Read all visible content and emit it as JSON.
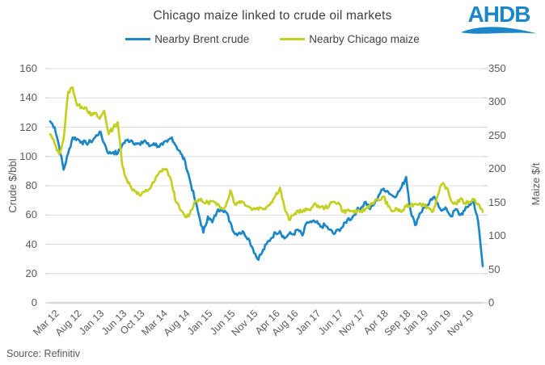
{
  "header": {
    "title": "Chicago maize linked to crude oil markets",
    "logo_text": "AHDB",
    "logo_color": "#1b87c8"
  },
  "legend": {
    "items": [
      {
        "label": "Nearby Brent crude",
        "color": "#1d87c6"
      },
      {
        "label": "Nearby Chicago maize",
        "color": "#c3d022"
      }
    ]
  },
  "source": "Source: Refinitiv",
  "colors": {
    "brent_line": "#1d87c6",
    "maize_line": "#c3d022",
    "gridline": "#dcdcdc",
    "axis_line": "#d9d9d9",
    "tick_text": "#595959",
    "title_text": "#3f3f3f"
  },
  "chart_data": {
    "type": "line",
    "title": "Chicago maize linked to crude oil markets",
    "x_unit": "month",
    "x_start": "Mar 2012",
    "x_end": "Mar 2020",
    "grid": true,
    "legend_position": "top",
    "left_axis": {
      "label": "Crude $/bbl",
      "min": 0,
      "max": 160,
      "ticks": [
        160,
        140,
        120,
        100,
        80,
        60,
        40,
        20,
        0
      ]
    },
    "right_axis": {
      "label": "Maize $/t",
      "min": 0,
      "max": 350,
      "ticks": [
        350,
        300,
        250,
        200,
        150,
        100,
        50,
        0
      ]
    },
    "x_ticks": [
      {
        "label": "Mar 12",
        "m": 0
      },
      {
        "label": "Aug 12",
        "m": 5
      },
      {
        "label": "Jan 13",
        "m": 10
      },
      {
        "label": "Jun 13",
        "m": 15
      },
      {
        "label": "Oct 13",
        "m": 19
      },
      {
        "label": "Mar 14",
        "m": 24
      },
      {
        "label": "Aug 14",
        "m": 29
      },
      {
        "label": "Jan 15",
        "m": 34
      },
      {
        "label": "Jun 15",
        "m": 39
      },
      {
        "label": "Nov 15",
        "m": 44
      },
      {
        "label": "Apr 16",
        "m": 49
      },
      {
        "label": "Aug 16",
        "m": 53
      },
      {
        "label": "Jan 17",
        "m": 58
      },
      {
        "label": "Jun 17",
        "m": 63
      },
      {
        "label": "Nov 17",
        "m": 68
      },
      {
        "label": "Apr 18",
        "m": 73
      },
      {
        "label": "Sep 18",
        "m": 78
      },
      {
        "label": "Jan 19",
        "m": 82
      },
      {
        "label": "Jun 19",
        "m": 87
      },
      {
        "label": "Nov 19",
        "m": 92
      }
    ],
    "series": [
      {
        "name": "Nearby Brent crude",
        "axis": "left",
        "color": "#1d87c6",
        "values": [
          124,
          120,
          107,
          91,
          102,
          113,
          112,
          110,
          109,
          110,
          113,
          117,
          109,
          102,
          103,
          102,
          108,
          111,
          111,
          109,
          108,
          111,
          107,
          109,
          107,
          108,
          110,
          113,
          107,
          102,
          96,
          84,
          72,
          60,
          48,
          59,
          55,
          62,
          65,
          62,
          55,
          47,
          48,
          48,
          44,
          37,
          30,
          34,
          40,
          44,
          48,
          49,
          44,
          47,
          47,
          50,
          46,
          55,
          55,
          55,
          52,
          53,
          50,
          47,
          50,
          52,
          57,
          58,
          63,
          65,
          69,
          64,
          68,
          74,
          78,
          76,
          73,
          74,
          79,
          86,
          63,
          53,
          61,
          65,
          67,
          72,
          68,
          63,
          64,
          59,
          64,
          60,
          63,
          67,
          69,
          55,
          25
        ]
      },
      {
        "name": "Nearby Chicago maize",
        "axis": "right",
        "color": "#c3d022",
        "values": [
          252,
          238,
          222,
          245,
          315,
          322,
          295,
          293,
          292,
          280,
          283,
          275,
          287,
          252,
          262,
          270,
          205,
          185,
          172,
          167,
          160,
          166,
          170,
          180,
          192,
          200,
          198,
          178,
          150,
          138,
          128,
          133,
          150,
          155,
          150,
          150,
          152,
          146,
          142,
          145,
          168,
          147,
          152,
          150,
          144,
          140,
          142,
          141,
          143,
          150,
          160,
          172,
          142,
          124,
          131,
          138,
          136,
          139,
          142,
          147,
          143,
          142,
          146,
          151,
          150,
          136,
          138,
          137,
          135,
          137,
          140,
          147,
          152,
          153,
          159,
          144,
          137,
          140,
          136,
          144,
          146,
          148,
          149,
          146,
          142,
          137,
          160,
          178,
          172,
          152,
          148,
          155,
          149,
          151,
          155,
          148,
          136
        ]
      }
    ]
  }
}
